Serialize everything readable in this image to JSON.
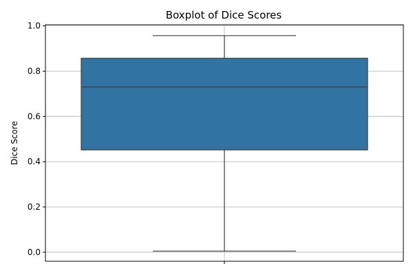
{
  "chart_data": {
    "type": "box",
    "title": "Boxplot of Dice Scores",
    "xlabel": "",
    "ylabel": "Dice Score",
    "ylim": [
      -0.04,
      1.005
    ],
    "yticks": [
      "0.0",
      "0.2",
      "0.4",
      "0.6",
      "0.8",
      "1.0"
    ],
    "grid": true,
    "box": {
      "min": 0.005,
      "q1": 0.452,
      "median": 0.73,
      "q3": 0.857,
      "max": 0.957
    },
    "colors": {
      "box_fill": "#3274a1",
      "box_edge": "#3d3d3d",
      "grid": "#b0b0b0",
      "axis": "#000000"
    }
  }
}
